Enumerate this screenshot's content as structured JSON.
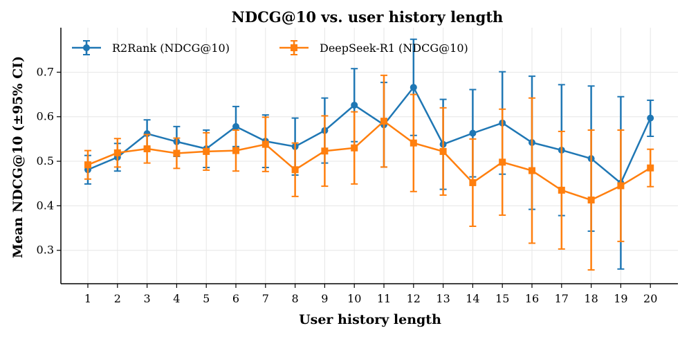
{
  "chart_data": {
    "type": "line",
    "title": "NDCG@10 vs. user history length",
    "xlabel": "User history length",
    "ylabel": "Mean NDCG@10 (±95% CI)",
    "x": [
      1,
      2,
      3,
      4,
      5,
      6,
      7,
      8,
      9,
      10,
      11,
      12,
      13,
      14,
      15,
      16,
      17,
      18,
      19,
      20
    ],
    "ylim": [
      0.225,
      0.8
    ],
    "yticks": [
      0.3,
      0.4,
      0.5,
      0.6,
      0.7
    ],
    "ytick_labels": [
      "0.3",
      "0.4",
      "0.5",
      "0.6",
      "0.7"
    ],
    "grid": true,
    "legend_position": "top-left",
    "series": [
      {
        "name": "R2Rank (NDCG@10)",
        "color": "#1f77b4",
        "marker": "circle",
        "values": [
          0.481,
          0.509,
          0.562,
          0.544,
          0.528,
          0.578,
          0.545,
          0.533,
          0.569,
          0.626,
          0.582,
          0.666,
          0.538,
          0.563,
          0.586,
          0.542,
          0.525,
          0.506,
          0.451,
          0.597
        ],
        "lower": [
          0.449,
          0.478,
          0.531,
          0.511,
          0.486,
          0.533,
          0.486,
          0.469,
          0.496,
          0.544,
          0.487,
          0.558,
          0.437,
          0.465,
          0.471,
          0.392,
          0.378,
          0.343,
          0.258,
          0.556
        ],
        "upper": [
          0.513,
          0.54,
          0.593,
          0.578,
          0.57,
          0.623,
          0.604,
          0.597,
          0.642,
          0.708,
          0.677,
          0.774,
          0.639,
          0.661,
          0.701,
          0.691,
          0.672,
          0.669,
          0.645,
          0.637
        ]
      },
      {
        "name": "DeepSeek-R1 (NDCG@10)",
        "color": "#ff7f0e",
        "marker": "square",
        "values": [
          0.492,
          0.519,
          0.528,
          0.518,
          0.522,
          0.524,
          0.538,
          0.481,
          0.523,
          0.53,
          0.59,
          0.541,
          0.522,
          0.452,
          0.498,
          0.479,
          0.435,
          0.413,
          0.445,
          0.485
        ],
        "lower": [
          0.46,
          0.487,
          0.496,
          0.484,
          0.48,
          0.478,
          0.477,
          0.421,
          0.444,
          0.449,
          0.487,
          0.432,
          0.424,
          0.354,
          0.379,
          0.316,
          0.303,
          0.256,
          0.32,
          0.443
        ],
        "upper": [
          0.524,
          0.551,
          0.56,
          0.552,
          0.564,
          0.57,
          0.599,
          0.541,
          0.602,
          0.611,
          0.693,
          0.65,
          0.62,
          0.55,
          0.617,
          0.642,
          0.567,
          0.57,
          0.57,
          0.527
        ]
      }
    ]
  }
}
